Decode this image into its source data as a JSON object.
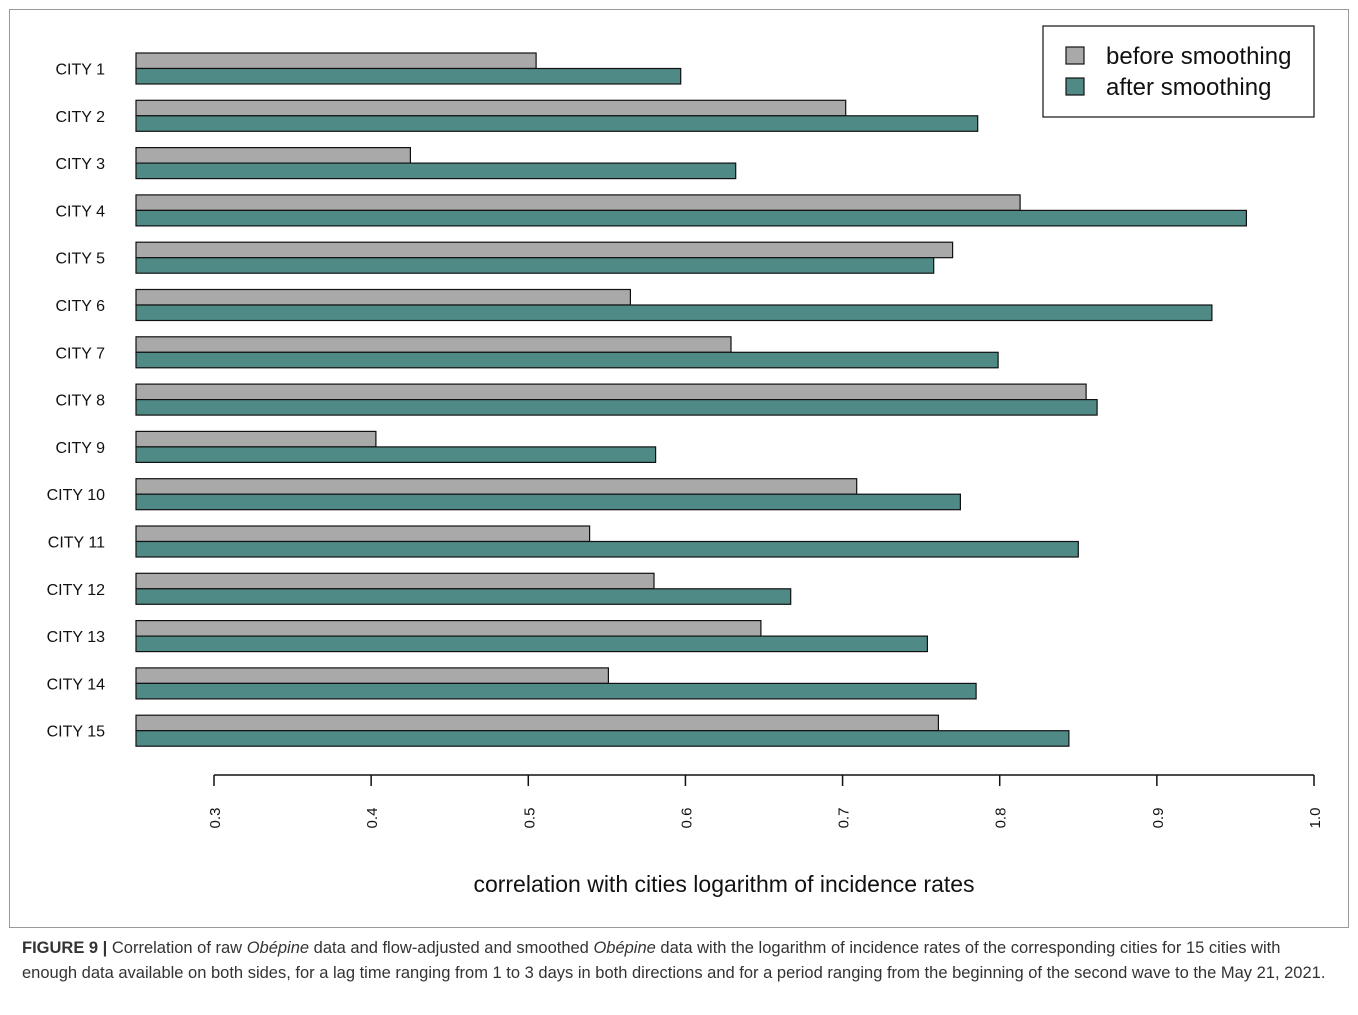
{
  "chart_data": {
    "type": "bar",
    "orientation": "horizontal",
    "title": "",
    "xlabel": "correlation with cities logarithm of incidence rates",
    "ylabel": "",
    "xlim": [
      0.3,
      1.0
    ],
    "xticks": [
      "0.3",
      "0.4",
      "0.5",
      "0.6",
      "0.7",
      "0.8",
      "0.9",
      "1.0"
    ],
    "grid": false,
    "legend_position": "top-right",
    "categories": [
      "CITY 1",
      "CITY 2",
      "CITY 3",
      "CITY 4",
      "CITY 5",
      "CITY 6",
      "CITY 7",
      "CITY 8",
      "CITY 9",
      "CITY 10",
      "CITY 11",
      "CITY 12",
      "CITY 13",
      "CITY 14",
      "CITY 15"
    ],
    "series": [
      {
        "name": "before smoothing",
        "color": "#a9a9a9",
        "values": [
          0.505,
          0.702,
          0.425,
          0.813,
          0.77,
          0.565,
          0.629,
          0.855,
          0.403,
          0.709,
          0.539,
          0.58,
          0.648,
          0.551,
          0.761
        ]
      },
      {
        "name": "after smoothing",
        "color": "#4f8a87",
        "values": [
          0.597,
          0.786,
          0.632,
          0.957,
          0.758,
          0.935,
          0.799,
          0.862,
          0.581,
          0.775,
          0.85,
          0.667,
          0.754,
          0.785,
          0.844
        ]
      }
    ]
  },
  "caption": {
    "label": "FIGURE 9 |",
    "part1": " Correlation of raw ",
    "em1": "Obépine",
    "part2": " data and flow-adjusted and smoothed ",
    "em2": "Obépine",
    "part3": " data with the logarithm of incidence rates of the corresponding cities for 15 cities with enough data available on both sides, for a lag time ranging from 1 to 3 days in both directions and for a period ranging from the beginning of the second wave to the May 21, 2021."
  }
}
